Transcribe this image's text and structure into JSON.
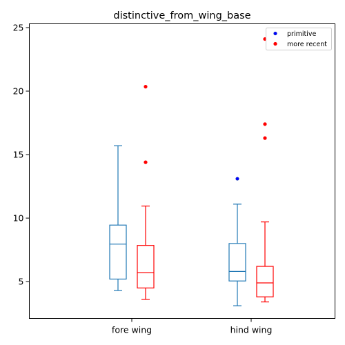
{
  "chart_data": {
    "type": "boxplot",
    "title": "distinctive_from_wing_base",
    "xlabel": "",
    "ylabel": "",
    "categories": [
      "fore wing",
      "hind wing"
    ],
    "ylim": [
      2.1,
      25.3
    ],
    "yticks": [
      5,
      10,
      15,
      20,
      25
    ],
    "grid": false,
    "legend_position": "top-right",
    "series": [
      {
        "name": "primitive",
        "color": "#1f77b4",
        "boxes": [
          {
            "category": "fore wing",
            "whisker_low": 4.3,
            "q1": 5.2,
            "median": 7.95,
            "q3": 9.45,
            "whisker_high": 15.7,
            "outliers": []
          },
          {
            "category": "hind wing",
            "whisker_low": 3.1,
            "q1": 5.05,
            "median": 5.8,
            "q3": 8.0,
            "whisker_high": 11.1,
            "outliers": [
              13.1
            ]
          }
        ]
      },
      {
        "name": "more recent",
        "color": "#ff0000",
        "boxes": [
          {
            "category": "fore wing",
            "whisker_low": 3.6,
            "q1": 4.5,
            "median": 5.7,
            "q3": 7.85,
            "whisker_high": 10.95,
            "outliers": [
              14.4,
              20.35
            ]
          },
          {
            "category": "hind wing",
            "whisker_low": 3.4,
            "q1": 3.8,
            "median": 4.9,
            "q3": 6.2,
            "whisker_high": 9.7,
            "outliers": [
              16.3,
              17.4,
              24.1
            ]
          }
        ]
      }
    ]
  }
}
